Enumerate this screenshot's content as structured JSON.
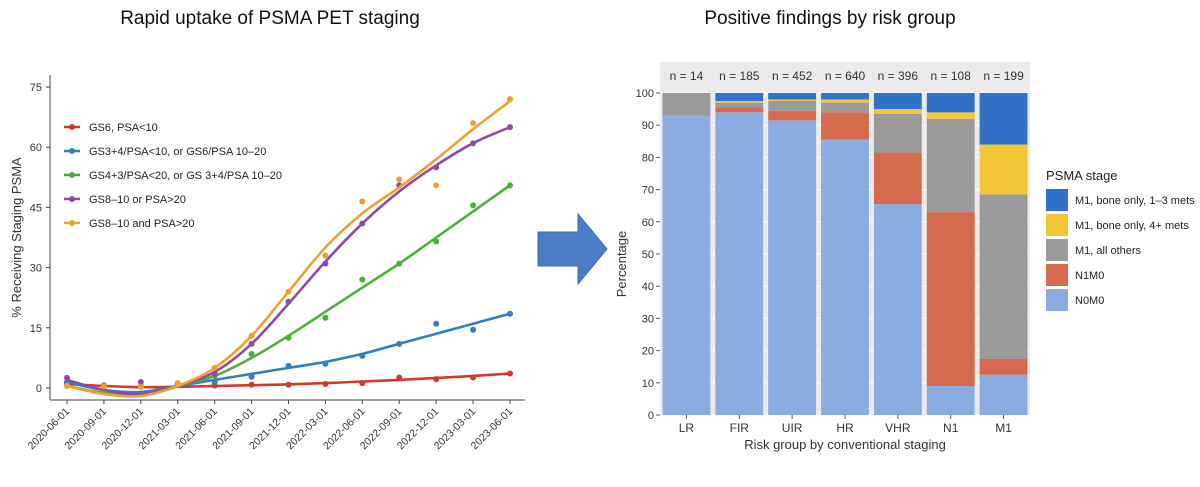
{
  "chart_data": [
    {
      "type": "line",
      "title": "Rapid uptake of PSMA PET staging",
      "xlabel": "",
      "ylabel": "% Receiving Staging PSMA",
      "x": [
        "2020-06-01",
        "2020-09-01",
        "2020-12-01",
        "2021-03-01",
        "2021-06-01",
        "2021-09-01",
        "2021-12-01",
        "2022-03-01",
        "2022-06-01",
        "2022-09-01",
        "2022-12-01",
        "2023-03-01",
        "2023-06-01"
      ],
      "yticks": [
        "0",
        "15",
        "30",
        "45",
        "60",
        "75"
      ],
      "ylim": [
        -3,
        78
      ],
      "legend_position": "top-left",
      "series": [
        {
          "name": "GS6, PSA<10",
          "color": "#d13b2d",
          "values": [
            1.5,
            0.3,
            0.3,
            0.8,
            0.6,
            0.8,
            0.8,
            1.0,
            1.2,
            2.6,
            2.2,
            2.6,
            3.6
          ],
          "fit": [
            1.0,
            0.5,
            0.2,
            0.3,
            0.5,
            0.7,
            0.9,
            1.2,
            1.6,
            2.0,
            2.5,
            3.0,
            3.6
          ]
        },
        {
          "name": "GS3+4/PSA<10, or GS6/PSA 10–20",
          "color": "#2f7fc1",
          "values": [
            1.2,
            0.6,
            0.4,
            0.8,
            1.5,
            2.8,
            5.5,
            6.0,
            8.0,
            11.0,
            16.0,
            14.5,
            18.5
          ],
          "fit": [
            1.5,
            -0.5,
            -1.0,
            0.5,
            2.0,
            3.5,
            5.0,
            6.5,
            8.5,
            11.0,
            13.5,
            16.0,
            18.5
          ]
        },
        {
          "name": "GS4+3/PSA<20, or GS 3+4/PSA 10–20",
          "color": "#4caf3c",
          "values": [
            0.5,
            0.4,
            0.3,
            1.0,
            3.0,
            8.5,
            12.5,
            17.5,
            27.0,
            31.0,
            36.5,
            45.5,
            50.5
          ],
          "fit": [
            0.5,
            -1.2,
            -1.5,
            0.5,
            3.0,
            7.5,
            13.0,
            19.0,
            25.0,
            31.0,
            37.5,
            44.0,
            50.5
          ]
        },
        {
          "name": "GS8–10 or PSA>20",
          "color": "#8e4aa8",
          "values": [
            2.5,
            0.6,
            1.5,
            0.8,
            3.5,
            11.0,
            21.5,
            31.0,
            41.0,
            50.5,
            55.0,
            61.0,
            65.0
          ],
          "fit": [
            2.0,
            -0.5,
            -1.5,
            0.5,
            4.0,
            11.0,
            21.0,
            31.5,
            41.0,
            49.0,
            55.5,
            61.0,
            65.0
          ]
        },
        {
          "name": "GS8–10 and PSA>20",
          "color": "#f0a030",
          "values": [
            0.5,
            0.4,
            0.2,
            1.2,
            5.0,
            13.0,
            24.0,
            33.0,
            46.5,
            52.0,
            50.5,
            66.0,
            72.0
          ],
          "fit": [
            0.5,
            -1.5,
            -2.0,
            0.5,
            5.0,
            13.0,
            24.0,
            35.0,
            43.5,
            50.0,
            57.0,
            64.5,
            71.5
          ]
        }
      ]
    },
    {
      "type": "bar",
      "stacked": true,
      "title": "Positive findings by risk group",
      "xlabel": "Risk group by conventional staging",
      "ylabel": "Percentage",
      "categories": [
        "LR",
        "FIR",
        "UIR",
        "HR",
        "VHR",
        "N1",
        "M1"
      ],
      "n_labels": [
        "n = 14",
        "n = 185",
        "n = 452",
        "n = 640",
        "n = 396",
        "n = 108",
        "n = 199"
      ],
      "yticks": [
        "0",
        "10",
        "20",
        "30",
        "40",
        "50",
        "60",
        "70",
        "80",
        "90",
        "100"
      ],
      "ylim": [
        0,
        100
      ],
      "legend_title": "PSMA stage",
      "legend_position": "right",
      "series": [
        {
          "name": "N0M0",
          "color": "#8aace0",
          "values": [
            93,
            94,
            91.5,
            85.5,
            65.5,
            9,
            12.5
          ]
        },
        {
          "name": "N1M0",
          "color": "#d66a4f",
          "values": [
            0,
            1.5,
            3,
            8.5,
            16,
            54,
            5
          ]
        },
        {
          "name": "M1, all others",
          "color": "#9a9a9a",
          "values": [
            7,
            1.5,
            3,
            3,
            12,
            29,
            51
          ]
        },
        {
          "name": "M1, bone only, 4+ mets",
          "color": "#f2c636",
          "values": [
            0,
            0.5,
            0.5,
            1,
            1.5,
            2,
            15.5
          ]
        },
        {
          "name": "M1, bone only, 1–3 mets",
          "color": "#2f72c7",
          "values": [
            0,
            2.5,
            2,
            2,
            5,
            6,
            16
          ]
        }
      ]
    }
  ],
  "arrow": {
    "color": "#4a7dc4"
  }
}
